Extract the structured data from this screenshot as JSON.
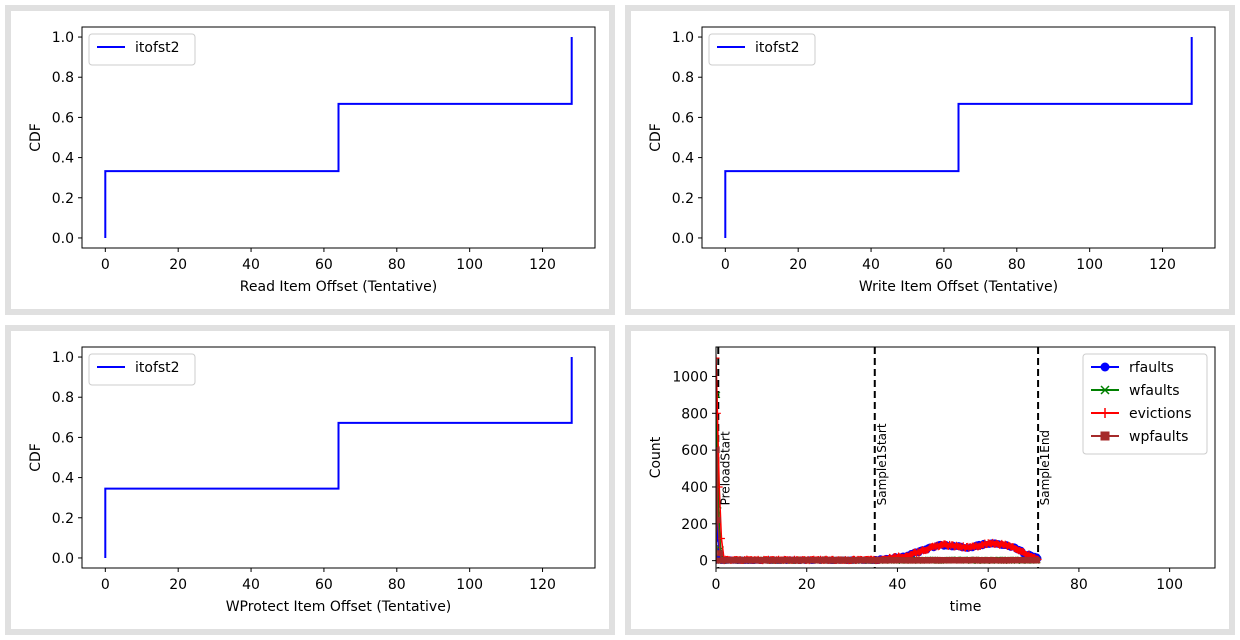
{
  "chart_data": [
    {
      "type": "line",
      "panel": "top-left",
      "xlabel": "Read Item Offset (Tentative)",
      "ylabel": "CDF",
      "xlim": [
        -6.4,
        134.4
      ],
      "ylim": [
        -0.05,
        1.05
      ],
      "xticks": [
        0,
        20,
        40,
        60,
        80,
        100,
        120
      ],
      "yticks": [
        0.0,
        0.2,
        0.4,
        0.6,
        0.8,
        1.0
      ],
      "xtick_labels": [
        "0",
        "20",
        "40",
        "60",
        "80",
        "100",
        "120"
      ],
      "ytick_labels": [
        "0.0",
        "0.2",
        "0.4",
        "0.6",
        "0.8",
        "1.0"
      ],
      "legend_position": "upper-left",
      "series": [
        {
          "name": "itofst2",
          "color": "#0000ff",
          "step": true,
          "points": [
            [
              0,
              0.0
            ],
            [
              0,
              0.333
            ],
            [
              64,
              0.333
            ],
            [
              64,
              0.667
            ],
            [
              128,
              0.667
            ],
            [
              128,
              1.0
            ]
          ]
        }
      ]
    },
    {
      "type": "line",
      "panel": "top-right",
      "xlabel": "Write Item Offset (Tentative)",
      "ylabel": "CDF",
      "xlim": [
        -6.4,
        134.4
      ],
      "ylim": [
        -0.05,
        1.05
      ],
      "xticks": [
        0,
        20,
        40,
        60,
        80,
        100,
        120
      ],
      "yticks": [
        0.0,
        0.2,
        0.4,
        0.6,
        0.8,
        1.0
      ],
      "xtick_labels": [
        "0",
        "20",
        "40",
        "60",
        "80",
        "100",
        "120"
      ],
      "ytick_labels": [
        "0.0",
        "0.2",
        "0.4",
        "0.6",
        "0.8",
        "1.0"
      ],
      "legend_position": "upper-left",
      "series": [
        {
          "name": "itofst2",
          "color": "#0000ff",
          "step": true,
          "points": [
            [
              0,
              0.0
            ],
            [
              0,
              0.333
            ],
            [
              64,
              0.333
            ],
            [
              64,
              0.667
            ],
            [
              128,
              0.667
            ],
            [
              128,
              1.0
            ]
          ]
        }
      ]
    },
    {
      "type": "line",
      "panel": "bottom-left",
      "xlabel": "WProtect Item Offset (Tentative)",
      "ylabel": "CDF",
      "xlim": [
        -6.4,
        134.4
      ],
      "ylim": [
        -0.05,
        1.05
      ],
      "xticks": [
        0,
        20,
        40,
        60,
        80,
        100,
        120
      ],
      "yticks": [
        0.0,
        0.2,
        0.4,
        0.6,
        0.8,
        1.0
      ],
      "xtick_labels": [
        "0",
        "20",
        "40",
        "60",
        "80",
        "100",
        "120"
      ],
      "ytick_labels": [
        "0.0",
        "0.2",
        "0.4",
        "0.6",
        "0.8",
        "1.0"
      ],
      "legend_position": "upper-left",
      "series": [
        {
          "name": "itofst2",
          "color": "#0000ff",
          "step": true,
          "points": [
            [
              0,
              0.0
            ],
            [
              0,
              0.345
            ],
            [
              64,
              0.345
            ],
            [
              64,
              0.672
            ],
            [
              128,
              0.672
            ],
            [
              128,
              1.0
            ]
          ]
        }
      ]
    },
    {
      "type": "line",
      "panel": "bottom-right",
      "xlabel": "time",
      "ylabel": "Count",
      "xlim": [
        0,
        110
      ],
      "ylim": [
        -40,
        1160
      ],
      "xticks": [
        0,
        20,
        40,
        60,
        80,
        100
      ],
      "yticks": [
        0,
        200,
        400,
        600,
        800,
        1000
      ],
      "xtick_labels": [
        "0",
        "20",
        "40",
        "60",
        "80",
        "100"
      ],
      "ytick_labels": [
        "0",
        "200",
        "400",
        "600",
        "800",
        "1000"
      ],
      "legend_position": "upper-right",
      "series": [
        {
          "name": "rfaults",
          "color": "#0000ff",
          "marker": "circle",
          "segments": [
            {
              "x_start": 0.0,
              "x_end": 35.0,
              "base": 0,
              "noise": 1
            },
            {
              "x_start": 35.0,
              "x_end": 71.0,
              "shape": "hump",
              "points": [
                [
                  35,
                  0
                ],
                [
                  38,
                  10
                ],
                [
                  42,
                  25
                ],
                [
                  45,
                  50
                ],
                [
                  48,
                  75
                ],
                [
                  50,
                  85
                ],
                [
                  53,
                  78
                ],
                [
                  56,
                  70
                ],
                [
                  58,
                  82
                ],
                [
                  60,
                  95
                ],
                [
                  63,
                  88
                ],
                [
                  66,
                  70
                ],
                [
                  68,
                  40
                ],
                [
                  70,
                  20
                ],
                [
                  71,
                  12
                ]
              ]
            }
          ],
          "spike": [
            [
              0.0,
              0
            ],
            [
              0.1,
              330
            ],
            [
              0.4,
              120
            ],
            [
              0.8,
              20
            ],
            [
              1.2,
              0
            ]
          ]
        },
        {
          "name": "wfaults",
          "color": "#008000",
          "marker": "x",
          "segments": [
            {
              "x_start": 0.0,
              "x_end": 71.0,
              "base": 0,
              "noise": 1
            }
          ],
          "spike": [
            [
              0.0,
              0
            ],
            [
              0.2,
              900
            ],
            [
              0.5,
              300
            ],
            [
              1.0,
              60
            ],
            [
              1.5,
              0
            ]
          ]
        },
        {
          "name": "evictions",
          "color": "#ff0000",
          "marker": "plus",
          "segments": [
            {
              "x_start": 0.0,
              "x_end": 35.0,
              "base": 0,
              "noise": 2
            },
            {
              "x_start": 35.0,
              "x_end": 71.0,
              "shape": "hump",
              "points": [
                [
                  35,
                  0
                ],
                [
                  38,
                  10
                ],
                [
                  42,
                  25
                ],
                [
                  45,
                  50
                ],
                [
                  48,
                  75
                ],
                [
                  50,
                  85
                ],
                [
                  53,
                  78
                ],
                [
                  56,
                  70
                ],
                [
                  58,
                  82
                ],
                [
                  60,
                  95
                ],
                [
                  63,
                  88
                ],
                [
                  66,
                  70
                ],
                [
                  68,
                  40
                ],
                [
                  70,
                  20
                ],
                [
                  71,
                  12
                ]
              ]
            }
          ],
          "spike": [
            [
              0.0,
              1100
            ],
            [
              0.3,
              800
            ],
            [
              0.7,
              400
            ],
            [
              1.2,
              120
            ],
            [
              1.8,
              0
            ]
          ]
        },
        {
          "name": "wpfaults",
          "color": "#a52a2a",
          "marker": "square",
          "segments": [
            {
              "x_start": 0.0,
              "x_end": 71.0,
              "base": 0,
              "noise": 1
            }
          ],
          "spike": [
            [
              0.0,
              0
            ],
            [
              0.15,
              600
            ],
            [
              0.4,
              220
            ],
            [
              0.9,
              40
            ],
            [
              1.3,
              0
            ]
          ]
        }
      ],
      "vlines": [
        {
          "x": 0.5,
          "label": "PreloadStart"
        },
        {
          "x": 35.0,
          "label": "Sample1Start"
        },
        {
          "x": 71.0,
          "label": "Sample1End"
        }
      ]
    }
  ]
}
